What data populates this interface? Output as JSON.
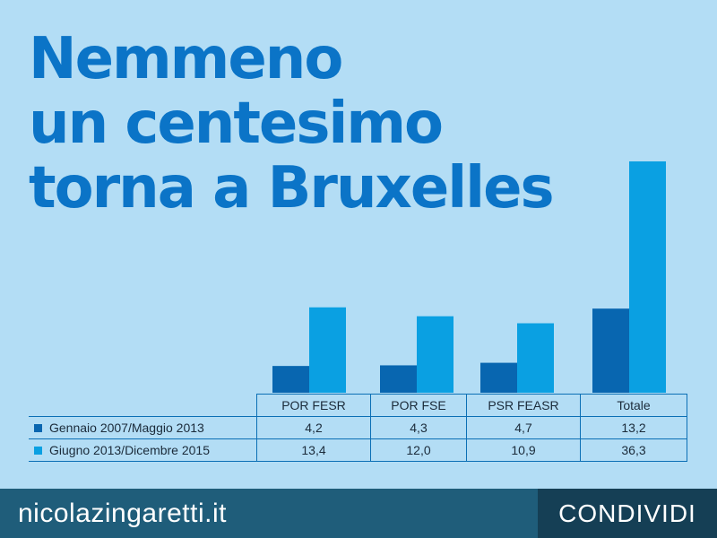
{
  "title_lines": [
    "Nemmeno",
    "un centesimo",
    "torna a Bruxelles"
  ],
  "colors": {
    "series1": "#0866b0",
    "series2": "#0aa0e2",
    "background": "#b3ddf5",
    "title": "#0b74c7"
  },
  "chart_data": {
    "type": "bar",
    "categories": [
      "POR FESR",
      "POR FSE",
      "PSR FEASR",
      "Totale"
    ],
    "series": [
      {
        "name": "Gennaio 2007/Maggio 2013",
        "values": [
          4.2,
          4.3,
          4.7,
          13.2
        ],
        "labels": [
          "4,2",
          "4,3",
          "4,7",
          "13,2"
        ]
      },
      {
        "name": "Giugno 2013/Dicembre 2015",
        "values": [
          13.4,
          12.0,
          10.9,
          36.3
        ],
        "labels": [
          "13,4",
          "12,0",
          "10,9",
          "36,3"
        ]
      }
    ],
    "ylim": [
      0,
      37
    ]
  },
  "footer": {
    "site": "nicolazingaretti.it",
    "share_label": "CONDIVIDI"
  }
}
